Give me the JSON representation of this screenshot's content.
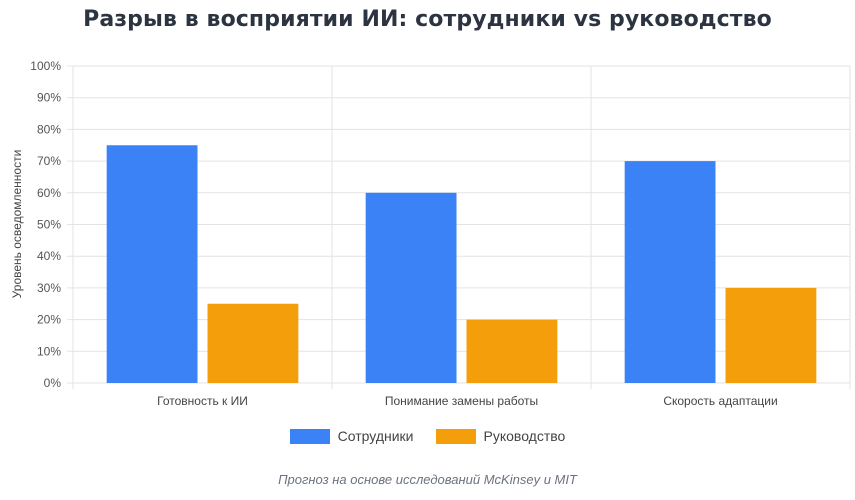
{
  "chart_data": {
    "type": "bar",
    "title": "Разрыв в восприятии ИИ: сотрудники vs руководство",
    "xlabel": "",
    "ylabel": "Уровень осведомленности",
    "categories": [
      "Готовность к ИИ",
      "Понимание замены работы",
      "Скорость адаптации"
    ],
    "series": [
      {
        "name": "Сотрудники",
        "color": "#3b82f6",
        "values": [
          75,
          60,
          70
        ]
      },
      {
        "name": "Руководство",
        "color": "#f59e0b",
        "values": [
          25,
          20,
          30
        ]
      }
    ],
    "ylim": [
      0,
      100
    ],
    "y_ticks": [
      "0%",
      "10%",
      "20%",
      "30%",
      "40%",
      "50%",
      "60%",
      "70%",
      "80%",
      "90%",
      "100%"
    ],
    "grid": true,
    "legend_position": "bottom"
  },
  "footnote": "Прогноз на основе исследований McKinsey и MIT"
}
